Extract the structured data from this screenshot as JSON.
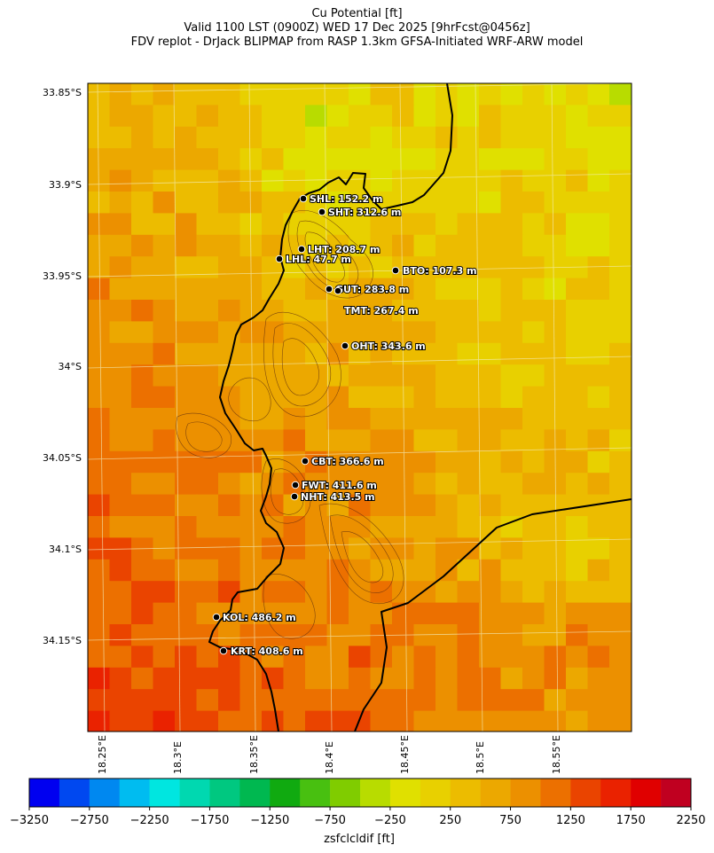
{
  "titles": {
    "line1": "Cu Potential [ft]",
    "line2": "Valid 1100 LST (0900Z) WED 17 Dec 2025 [9hrFcst@0456z]",
    "line3": "FDV replot - DrJack BLIPMAP from RASP 1.3km GFSA-Initiated WRF-ARW model"
  },
  "map": {
    "lat_labels": [
      "33.85°S",
      "33.9°S",
      "33.95°S",
      "34°S",
      "34.05°S",
      "34.1°S",
      "34.15°S"
    ],
    "lon_labels": [
      "18.25°E",
      "18.3°E",
      "18.35°E",
      "18.4°E",
      "18.45°E",
      "18.5°E",
      "18.55°E"
    ],
    "stations": [
      {
        "code": "SHL",
        "text": "SHL: 152.2 m"
      },
      {
        "code": "SHT",
        "text": "SHT: 312.6 m"
      },
      {
        "code": "LHT",
        "text": "LHT: 208.7 m"
      },
      {
        "code": "LHL",
        "text": "LHL: 47.7 m"
      },
      {
        "code": "BTO",
        "text": "BTO: 107.3 m"
      },
      {
        "code": "GUT",
        "text": "GUT: 283.8 m"
      },
      {
        "code": "TMT",
        "text": "TMT: 267.4 m"
      },
      {
        "code": "OHT",
        "text": "OHT: 343.6 m"
      },
      {
        "code": "CBT",
        "text": "CBT: 366.6 m"
      },
      {
        "code": "FWT",
        "text": "FWT: 411.6 m"
      },
      {
        "code": "NHT",
        "text": "NHT: 413.5 m"
      },
      {
        "code": "KOL",
        "text": "KOL: 486.2 m"
      },
      {
        "code": "KRT",
        "text": "KRT: 408.6 m"
      }
    ]
  },
  "colorbar": {
    "label": "zsfclcldif [ft]",
    "tick_labels": [
      "-3250",
      "-2750",
      "-2250",
      "-1750",
      "-1250",
      "-750",
      "-250",
      "250",
      "750",
      "1250",
      "1750",
      "2250"
    ],
    "colors": [
      "#0000f0",
      "#0048f0",
      "#0088f0",
      "#00bcf0",
      "#00e6e0",
      "#00d8b0",
      "#00c880",
      "#00b850",
      "#10aa10",
      "#48c010",
      "#80cc00",
      "#b8dc00",
      "#e0e000",
      "#e8d000",
      "#ecbc00",
      "#eca800",
      "#ec9000",
      "#ec7000",
      "#ea4400",
      "#ea2200",
      "#e00000",
      "#c00020"
    ]
  }
}
